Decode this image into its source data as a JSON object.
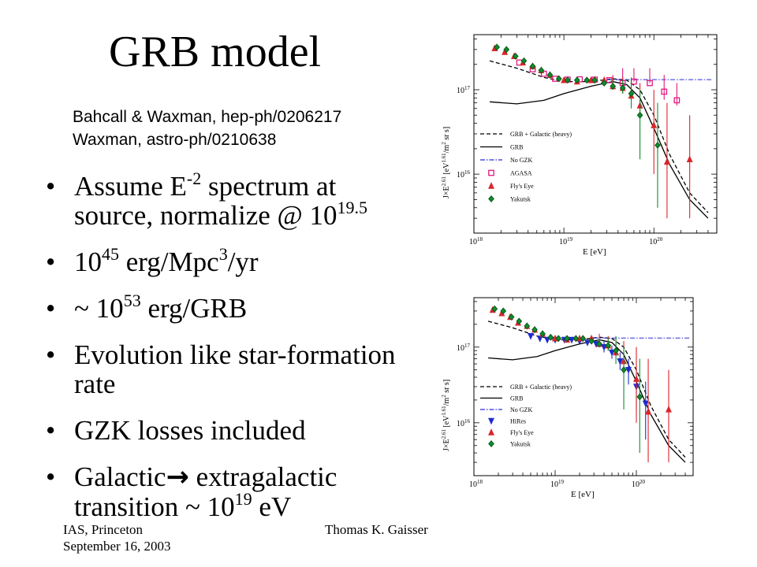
{
  "title": "GRB model",
  "citations": [
    "Bahcall & Waxman, hep-ph/0206217",
    "Waxman, astro-ph/0210638"
  ],
  "bullet_glyph": "•",
  "bullets": [
    {
      "pre": "Assume E",
      "sup1": "-2",
      "mid": " spectrum at source, normalize @ 10",
      "sup2": "19.5",
      "post": ""
    },
    {
      "pre": "10",
      "sup1": "45",
      "mid": " erg/Mpc",
      "sup2": "3",
      "post": "/yr"
    },
    {
      "pre": "~ 10",
      "sup1": "53",
      "mid": " erg/GRB",
      "sup2": "",
      "post": ""
    },
    {
      "pre": "Evolution like star-formation rate",
      "sup1": "",
      "mid": "",
      "sup2": "",
      "post": ""
    },
    {
      "pre": "GZK losses included",
      "sup1": "",
      "mid": "",
      "sup2": "",
      "post": ""
    },
    {
      "pre": "Galactic",
      "arrow": "→",
      "mid": " extragalactic transition ~ 10",
      "sup1": "19",
      "post": " eV"
    }
  ],
  "footer": {
    "left_line1": "IAS, Princeton",
    "left_line2": "September 16, 2003",
    "center": "Thomas K. Gaisser"
  },
  "chart_data": [
    {
      "type": "scatter",
      "xlabel": "E  [eV]",
      "ylabel": "J×E^2.61 [eV^1.61/m^2 sr s]",
      "xscale": "log",
      "yscale": "log",
      "xticks": [
        "10^18",
        "10^19",
        "10^20"
      ],
      "yticks": [
        "10^17",
        "10^16"
      ],
      "legend_position": "lower-left",
      "legend": [
        "GRB + Galactic (heavy)",
        "GRB",
        "No GZK",
        "AGASA",
        "Fly's Eye",
        "Yakutsk"
      ],
      "colors": {
        "agasa": "#e0197f",
        "flyseye": "#d9262a",
        "yakutsk": "#0d8f2c",
        "nogzk": "#2a2ad8"
      },
      "lines": [
        {
          "name": "GRB + Galactic (heavy)",
          "style": "dashed",
          "x": [
            1.5e+18,
            3e+18,
            6e+18,
            1e+19,
            2e+19,
            3.5e+19,
            5e+19,
            7e+19,
            1e+20,
            1.5e+20,
            2.5e+20,
            4e+20
          ],
          "y": [
            2.2e+17,
            1.8e+17,
            1.4e+17,
            1.25e+17,
            1.25e+17,
            1.35e+17,
            1.3e+17,
            1e+17,
            5e+16,
            1.7e+16,
            6000000000000000.0,
            3500000000000000.0
          ]
        },
        {
          "name": "GRB",
          "style": "solid",
          "x": [
            1.5e+18,
            3e+18,
            6e+18,
            1e+19,
            2e+19,
            3.5e+19,
            5e+19,
            7e+19,
            1e+20,
            1.5e+20,
            2.5e+20,
            4e+20
          ],
          "y": [
            7.2e+16,
            6.8e+16,
            7.5e+16,
            9e+16,
            1.1e+17,
            1.25e+17,
            1.15e+17,
            8e+16,
            3.5e+16,
            1.3e+16,
            5000000000000000.0,
            3000000000000000.0
          ]
        },
        {
          "name": "No GZK",
          "style": "dashdot",
          "x": [
            3e+19,
            4.5e+20
          ],
          "y": [
            1.32e+17,
            1.32e+17
          ]
        }
      ],
      "series": [
        {
          "name": "AGASA",
          "marker": "square",
          "x": [
            3.2e+18,
            4.5e+18,
            6e+18,
            8e+18,
            1.1e+19,
            1.5e+19,
            2.2e+19,
            3.2e+19,
            4.5e+19,
            6e+19,
            9e+19,
            1.3e+20,
            1.8e+20
          ],
          "y": [
            2.1e+17,
            1.75e+17,
            1.55e+17,
            1.35e+17,
            1.32e+17,
            1.33e+17,
            1.32e+17,
            1.3e+17,
            1.2e+17,
            1.25e+17,
            1.2e+17,
            9.5e+16,
            7.5e+16
          ],
          "yerr_lo": [
            2.1e+17,
            1.75e+17,
            1.55e+17,
            1.35e+17,
            1.32e+17,
            1.33e+17,
            1.32e+17,
            1.3e+17,
            1.2e+17,
            1.25e+17,
            1.2e+17,
            7.6e+16,
            6.5e+16
          ],
          "yerr_hi": [
            2.1e+17,
            1.75e+17,
            1.55e+17,
            1.35e+17,
            1.32e+17,
            1.33e+17,
            1.32e+17,
            1.3e+17,
            1.8e+17,
            1.8e+17,
            1.8e+17,
            1.5e+17,
            1.2e+17
          ]
        },
        {
          "name": "Fly's Eye",
          "marker": "triangle",
          "x": [
            1.7e+18,
            2.2e+18,
            2.8e+18,
            3.5e+18,
            4.5e+18,
            5.6e+18,
            7e+18,
            1e+19,
            1.4e+19,
            2e+19,
            2.8e+19,
            3.5e+19,
            4.5e+19,
            5.6e+19,
            7e+19,
            1e+20,
            1.4e+20,
            2.5e+20
          ],
          "y": [
            3.1e+17,
            2.8e+17,
            2.5e+17,
            2.1e+17,
            1.9e+17,
            1.7e+17,
            1.5e+17,
            1.3e+17,
            1.25e+17,
            1.3e+17,
            1.3e+17,
            1.1e+17,
            1.05e+17,
            8.5e+16,
            6.5e+16,
            3.8e+16,
            1.4e+16,
            1.5e+16
          ],
          "yerr_lo": [
            3.1e+17,
            2.8e+17,
            2.5e+17,
            2.1e+17,
            1.9e+17,
            1.7e+17,
            1.5e+17,
            1.3e+17,
            1.25e+17,
            1.3e+17,
            1.3e+17,
            1.1e+17,
            9e+16,
            7.5e+16,
            5e+16,
            1e+16,
            3000000000000000.0,
            3000000000000000.0
          ],
          "yerr_hi": [
            3.1e+17,
            2.8e+17,
            2.5e+17,
            2.1e+17,
            1.9e+17,
            1.7e+17,
            1.5e+17,
            1.3e+17,
            1.25e+17,
            1.3e+17,
            1.3e+17,
            1.5e+17,
            1.4e+17,
            1.3e+17,
            1.2e+17,
            1e+17,
            7e+16,
            5e+16
          ]
        },
        {
          "name": "Yakutsk",
          "marker": "diamond",
          "x": [
            1.8e+18,
            2.3e+18,
            2.9e+18,
            3.6e+18,
            4.5e+18,
            5.6e+18,
            7e+18,
            8.8e+18,
            1.1e+19,
            1.4e+19,
            1.8e+19,
            2.2e+19,
            2.8e+19,
            3.5e+19,
            4.5e+19,
            5.6e+19,
            7e+19,
            1.1e+20
          ],
          "y": [
            3.2e+17,
            3e+17,
            2.5e+17,
            2.2e+17,
            1.9e+17,
            1.7e+17,
            1.5e+17,
            1.35e+17,
            1.3e+17,
            1.3e+17,
            1.3e+17,
            1.3e+17,
            1.2e+17,
            1.1e+17,
            1.05e+17,
            9e+16,
            5e+16,
            2.2e+16
          ],
          "yerr_lo": [
            3.2e+17,
            3e+17,
            2.5e+17,
            2.2e+17,
            1.9e+17,
            1.7e+17,
            1.5e+17,
            1.35e+17,
            1.3e+17,
            1.3e+17,
            1.3e+17,
            1.3e+17,
            1.2e+17,
            1e+17,
            9e+16,
            6e+16,
            1.5e+16,
            4000000000000000.0
          ],
          "yerr_hi": [
            3.2e+17,
            3e+17,
            2.5e+17,
            2.2e+17,
            1.9e+17,
            1.7e+17,
            1.5e+17,
            1.35e+17,
            1.3e+17,
            1.3e+17,
            1.3e+17,
            1.3e+17,
            1.2e+17,
            1.3e+17,
            1.3e+17,
            1.4e+17,
            1e+17,
            7e+16
          ]
        }
      ]
    },
    {
      "type": "scatter",
      "xlabel": "E  [eV]",
      "ylabel": "J×E^2.61 [eV^1.61/m^2 sr s]",
      "xscale": "log",
      "yscale": "log",
      "xticks": [
        "10^18",
        "10^19",
        "10^20"
      ],
      "yticks": [
        "10^17",
        "10^16"
      ],
      "legend_position": "lower-left",
      "legend": [
        "GRB + Galactic (heavy)",
        "GRB",
        "No GZK",
        "HiRes",
        "Fly's Eye",
        "Yakutsk"
      ],
      "colors": {
        "hires": "#1f2bd0",
        "flyseye": "#d9262a",
        "yakutsk": "#0d8f2c",
        "nogzk": "#2a2ad8"
      },
      "lines": [
        {
          "name": "GRB + Galactic (heavy)",
          "style": "dashed",
          "x": [
            1.5e+18,
            3e+18,
            6e+18,
            1e+19,
            2e+19,
            3.5e+19,
            5e+19,
            7e+19,
            1e+20,
            1.5e+20,
            2.5e+20,
            4e+20
          ],
          "y": [
            2.2e+17,
            1.8e+17,
            1.4e+17,
            1.25e+17,
            1.25e+17,
            1.35e+17,
            1.3e+17,
            1e+17,
            5e+16,
            1.7e+16,
            6000000000000000.0,
            3500000000000000.0
          ]
        },
        {
          "name": "GRB",
          "style": "solid",
          "x": [
            1.5e+18,
            3e+18,
            6e+18,
            1e+19,
            2e+19,
            3.5e+19,
            5e+19,
            7e+19,
            1e+20,
            1.5e+20,
            2.5e+20,
            4e+20
          ],
          "y": [
            7.2e+16,
            6.8e+16,
            7.5e+16,
            9e+16,
            1.1e+17,
            1.25e+17,
            1.15e+17,
            8e+16,
            3.5e+16,
            1.3e+16,
            5000000000000000.0,
            3000000000000000.0
          ]
        },
        {
          "name": "No GZK",
          "style": "dashdot",
          "x": [
            3e+19,
            4.5e+20
          ],
          "y": [
            1.32e+17,
            1.32e+17
          ]
        }
      ],
      "series": [
        {
          "name": "HiRes",
          "marker": "triangle-down",
          "x": [
            5e+18,
            6.5e+18,
            8e+18,
            1e+19,
            1.3e+19,
            1.6e+19,
            2e+19,
            2.5e+19,
            3.2e+19,
            4e+19,
            5e+19,
            6.3e+19,
            8e+19,
            1e+20,
            1.3e+20
          ],
          "y": [
            1.4e+17,
            1.3e+17,
            1.25e+17,
            1.25e+17,
            1.25e+17,
            1.25e+17,
            1.2e+17,
            1.15e+17,
            1.1e+17,
            1e+17,
            8.5e+16,
            6.5e+16,
            5e+16,
            3e+16,
            1.8e+16
          ],
          "yerr_lo": [
            1.4e+17,
            1.3e+17,
            1.25e+17,
            1.25e+17,
            1.25e+17,
            1.25e+17,
            1.2e+17,
            1.15e+17,
            1.1e+17,
            8.5e+16,
            7e+16,
            5e+16,
            3.2e+16,
            1.5e+16,
            6000000000000000.0
          ],
          "yerr_hi": [
            1.4e+17,
            1.3e+17,
            1.25e+17,
            1.25e+17,
            1.25e+17,
            1.25e+17,
            1.2e+17,
            1.15e+17,
            1.1e+17,
            1.2e+17,
            1.05e+17,
            8.5e+16,
            7e+16,
            5e+16,
            3.5e+16
          ]
        },
        {
          "name": "Fly's Eye",
          "marker": "triangle",
          "x": [
            1.7e+18,
            2.2e+18,
            2.8e+18,
            3.5e+18,
            4.5e+18,
            5.6e+18,
            7e+18,
            1e+19,
            1.4e+19,
            2e+19,
            2.8e+19,
            3.5e+19,
            4.5e+19,
            5.6e+19,
            7e+19,
            1e+20,
            1.4e+20,
            2.5e+20
          ],
          "y": [
            3.1e+17,
            2.8e+17,
            2.5e+17,
            2.1e+17,
            1.9e+17,
            1.7e+17,
            1.5e+17,
            1.3e+17,
            1.25e+17,
            1.3e+17,
            1.3e+17,
            1.1e+17,
            1.05e+17,
            8.5e+16,
            6.5e+16,
            3.8e+16,
            1.4e+16,
            1.5e+16
          ],
          "yerr_lo": [
            3.1e+17,
            2.8e+17,
            2.5e+17,
            2.1e+17,
            1.9e+17,
            1.7e+17,
            1.5e+17,
            1.3e+17,
            1.25e+17,
            1.3e+17,
            1.3e+17,
            1.1e+17,
            9e+16,
            7.5e+16,
            5e+16,
            1e+16,
            3000000000000000.0,
            3000000000000000.0
          ],
          "yerr_hi": [
            3.1e+17,
            2.8e+17,
            2.5e+17,
            2.1e+17,
            1.9e+17,
            1.7e+17,
            1.5e+17,
            1.3e+17,
            1.25e+17,
            1.3e+17,
            1.3e+17,
            1.5e+17,
            1.4e+17,
            1.3e+17,
            1.2e+17,
            1e+17,
            7e+16,
            5e+16
          ]
        },
        {
          "name": "Yakutsk",
          "marker": "diamond",
          "x": [
            1.8e+18,
            2.3e+18,
            2.9e+18,
            3.6e+18,
            4.5e+18,
            5.6e+18,
            7e+18,
            8.8e+18,
            1.1e+19,
            1.4e+19,
            1.8e+19,
            2.2e+19,
            2.8e+19,
            3.5e+19,
            4.5e+19,
            5.6e+19,
            7e+19,
            1.1e+20
          ],
          "y": [
            3.2e+17,
            3e+17,
            2.5e+17,
            2.2e+17,
            1.9e+17,
            1.7e+17,
            1.5e+17,
            1.35e+17,
            1.3e+17,
            1.3e+17,
            1.3e+17,
            1.3e+17,
            1.2e+17,
            1.1e+17,
            1.05e+17,
            9e+16,
            5e+16,
            2.2e+16
          ],
          "yerr_lo": [
            3.2e+17,
            3e+17,
            2.5e+17,
            2.2e+17,
            1.9e+17,
            1.7e+17,
            1.5e+17,
            1.35e+17,
            1.3e+17,
            1.3e+17,
            1.3e+17,
            1.3e+17,
            1.2e+17,
            1e+17,
            9e+16,
            6e+16,
            1.5e+16,
            4000000000000000.0
          ],
          "yerr_hi": [
            3.2e+17,
            3e+17,
            2.5e+17,
            2.2e+17,
            1.9e+17,
            1.7e+17,
            1.5e+17,
            1.35e+17,
            1.3e+17,
            1.3e+17,
            1.3e+17,
            1.3e+17,
            1.2e+17,
            1.3e+17,
            1.3e+17,
            1.4e+17,
            1e+17,
            7e+16
          ]
        }
      ]
    }
  ]
}
